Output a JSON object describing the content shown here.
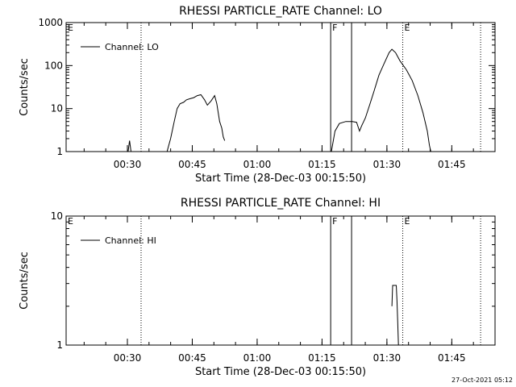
{
  "chart_data": [
    {
      "type": "line",
      "title": "RHESSI PARTICLE_RATE Channel: LO",
      "xlabel": "Start Time (28-Dec-03 00:15:50)",
      "ylabel": "Counts/sec",
      "y_scale": "log",
      "ylim": [
        1,
        1000
      ],
      "xlim": [
        "00:15:50",
        "01:55:00"
      ],
      "y_ticks": [
        "1",
        "10",
        "100",
        "1000"
      ],
      "x_ticks": [
        "00:30",
        "00:45",
        "01:00",
        "01:15",
        "01:30",
        "01:45"
      ],
      "legend": {
        "label": "Channel: LO",
        "placement": "top-left"
      },
      "markers": [
        {
          "time": "00:15:50",
          "label": "E",
          "style": "solid"
        },
        {
          "time": "00:33:10",
          "label": "",
          "style": "dotted"
        },
        {
          "time": "01:17:00",
          "label": "F",
          "style": "solid"
        },
        {
          "time": "01:21:50",
          "label": "",
          "style": "solid"
        },
        {
          "time": "01:33:40",
          "label": "E",
          "style": "dotted"
        },
        {
          "time": "01:51:40",
          "label": "",
          "style": "dotted"
        }
      ],
      "series": [
        {
          "name": "Channel: LO",
          "segments": [
            [
              [
                "00:30:10",
                1
              ],
              [
                "00:30:30",
                1.8
              ],
              [
                "00:30:50",
                1
              ]
            ],
            [
              [
                "00:39:10",
                1
              ],
              [
                "00:40:00",
                2
              ],
              [
                "00:40:50",
                5
              ],
              [
                "00:41:30",
                10
              ],
              [
                "00:42:10",
                13
              ],
              [
                "00:43:00",
                14
              ],
              [
                "00:43:40",
                16
              ],
              [
                "00:44:30",
                17
              ],
              [
                "00:45:20",
                18
              ],
              [
                "00:46:10",
                20
              ],
              [
                "00:47:00",
                21
              ],
              [
                "00:47:50",
                16
              ],
              [
                "00:48:30",
                12
              ],
              [
                "00:49:20",
                15
              ],
              [
                "00:50:10",
                20
              ],
              [
                "00:50:40",
                13
              ],
              [
                "00:51:20",
                5
              ],
              [
                "00:51:50",
                3.5
              ],
              [
                "00:52:10",
                2.2
              ],
              [
                "00:52:30",
                1.8
              ]
            ],
            [
              [
                "01:17:10",
                1
              ],
              [
                "01:18:00",
                3
              ],
              [
                "01:19:00",
                4.5
              ],
              [
                "01:20:30",
                5
              ],
              [
                "01:22:00",
                5
              ],
              [
                "01:23:00",
                4.8
              ],
              [
                "01:23:40",
                3
              ],
              [
                "01:24:10",
                4
              ],
              [
                "01:25:00",
                6
              ],
              [
                "01:26:00",
                12
              ],
              [
                "01:27:00",
                25
              ],
              [
                "01:28:10",
                60
              ],
              [
                "01:29:20",
                110
              ],
              [
                "01:30:30",
                200
              ],
              [
                "01:31:10",
                240
              ],
              [
                "01:32:00",
                200
              ],
              [
                "01:33:00",
                130
              ],
              [
                "01:34:30",
                80
              ],
              [
                "01:35:50",
                45
              ],
              [
                "01:37:10",
                20
              ],
              [
                "01:38:20",
                8
              ],
              [
                "01:39:20",
                3
              ],
              [
                "01:39:50",
                1.4
              ],
              [
                "01:40:10",
                1
              ]
            ]
          ]
        }
      ]
    },
    {
      "type": "line",
      "title": "RHESSI PARTICLE_RATE Channel: HI",
      "xlabel": "Start Time (28-Dec-03 00:15:50)",
      "ylabel": "Counts/sec",
      "y_scale": "log",
      "ylim": [
        1,
        10
      ],
      "xlim": [
        "00:15:50",
        "01:55:00"
      ],
      "y_ticks": [
        "1",
        "10"
      ],
      "x_ticks": [
        "00:30",
        "00:45",
        "01:00",
        "01:15",
        "01:30",
        "01:45"
      ],
      "legend": {
        "label": "Channel: HI",
        "placement": "top-left"
      },
      "markers": [
        {
          "time": "00:15:50",
          "label": "E",
          "style": "solid"
        },
        {
          "time": "00:33:10",
          "label": "",
          "style": "dotted"
        },
        {
          "time": "01:17:00",
          "label": "F",
          "style": "solid"
        },
        {
          "time": "01:21:50",
          "label": "",
          "style": "solid"
        },
        {
          "time": "01:33:40",
          "label": "E",
          "style": "dotted"
        },
        {
          "time": "01:51:40",
          "label": "",
          "style": "dotted"
        }
      ],
      "series": [
        {
          "name": "Channel: HI",
          "segments": [
            [
              [
                "01:31:10",
                2
              ],
              [
                "01:31:20",
                2.9
              ],
              [
                "01:32:10",
                2.9
              ],
              [
                "01:32:20",
                2.2
              ],
              [
                "01:32:30",
                1.5
              ],
              [
                "01:32:40",
                1
              ]
            ]
          ]
        }
      ]
    }
  ],
  "footer": {
    "timestamp": "27-Oct-2021 05:12"
  }
}
